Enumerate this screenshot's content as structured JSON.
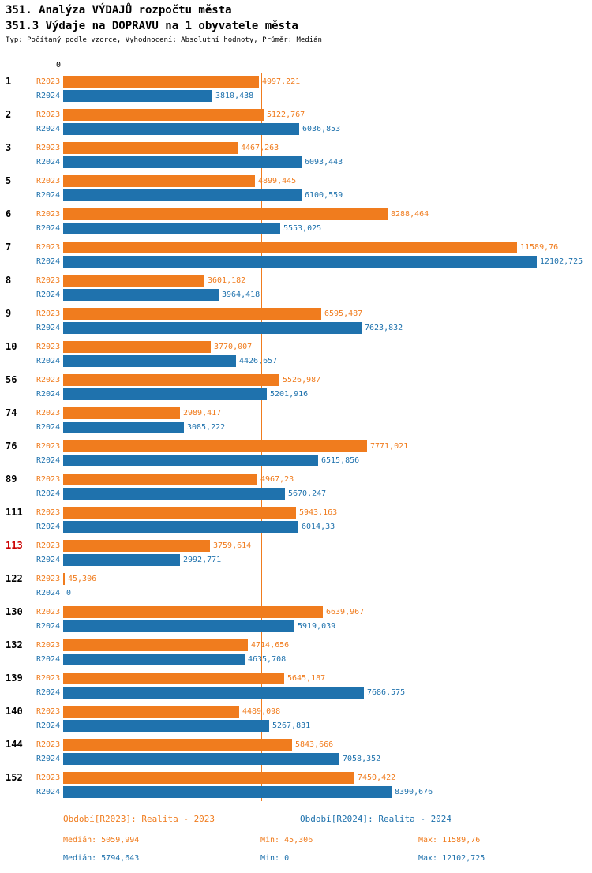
{
  "header": {
    "title": "351. Analýza VÝDAJŮ rozpočtu města",
    "subtitle": "351.3 Výdaje na DOPRAVU na 1 obyvatele města",
    "meta": "Typ: Počítaný podle vzorce, Vyhodnocení: Absolutní hodnoty, Průměr: Medián"
  },
  "colors": {
    "r2023": "#f07c1e",
    "r2024": "#1f72ad",
    "highlight": "#cc0000",
    "axis": "#000000"
  },
  "chart_data": {
    "type": "bar",
    "orientation": "horizontal",
    "x_axis": {
      "zero_label": "0",
      "min": 0,
      "max": 12102.725
    },
    "categories": [
      "1",
      "2",
      "3",
      "5",
      "6",
      "7",
      "8",
      "9",
      "10",
      "56",
      "74",
      "76",
      "89",
      "111",
      "113",
      "122",
      "130",
      "132",
      "139",
      "140",
      "144",
      "152"
    ],
    "highlighted_categories": [
      "113"
    ],
    "series": [
      {
        "name": "R2023",
        "color_key": "r2023",
        "values": [
          4997.221,
          5122.767,
          4467.263,
          4899.445,
          8288.464,
          11589.76,
          3601.182,
          6595.487,
          3770.007,
          5526.987,
          2989.417,
          7771.021,
          4967.23,
          5943.163,
          3759.614,
          45.306,
          6639.967,
          4714.656,
          5645.187,
          4489.098,
          5843.666,
          7450.422
        ]
      },
      {
        "name": "R2024",
        "color_key": "r2024",
        "values": [
          3810.438,
          6036.853,
          6093.443,
          6100.559,
          5553.025,
          12102.725,
          3964.418,
          7623.832,
          4426.657,
          5201.916,
          3085.222,
          6515.856,
          5670.247,
          6014.33,
          2992.771,
          0,
          5919.039,
          4635.708,
          7686.575,
          5267.831,
          7058.352,
          8390.676
        ]
      }
    ],
    "median_lines": [
      {
        "series": "R2023",
        "value": 5059.994,
        "color_key": "r2023"
      },
      {
        "series": "R2024",
        "value": 5794.643,
        "color_key": "r2024"
      }
    ]
  },
  "footer": {
    "legend_r2023": "Období[R2023]: Realita - 2023",
    "legend_r2024": "Období[R2024]: Realita - 2024",
    "stats_r2023": {
      "median": "Medián: 5059,994",
      "min": "Min: 45,306",
      "max": "Max: 11589,76"
    },
    "stats_r2024": {
      "median": "Medián: 5794,643",
      "min": "Min: 0",
      "max": "Max: 12102,725"
    }
  }
}
